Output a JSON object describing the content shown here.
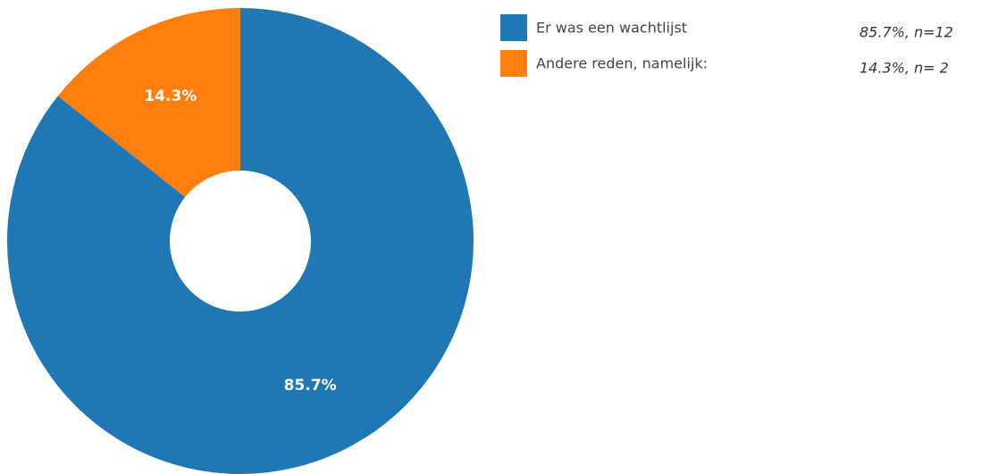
{
  "chart_data": {
    "type": "donut",
    "categories": [
      "Er was een wachtlijst",
      "Andere reden, namelijk:"
    ],
    "values": [
      85.7,
      14.3
    ],
    "value_labels": [
      "85.7%",
      "14.3%"
    ],
    "colors": [
      "#1f77b4",
      "#ff7f0e"
    ],
    "legend_notes": [
      "85.7%, n=12",
      "14.3%, n= 2"
    ]
  }
}
